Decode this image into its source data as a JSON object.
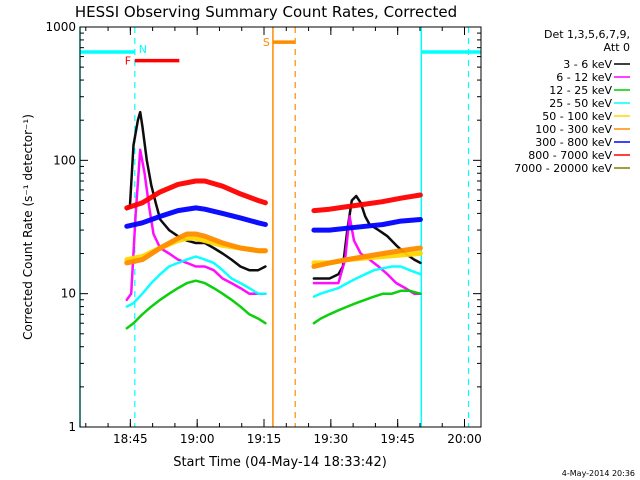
{
  "chart_data": {
    "type": "line",
    "title": "HESSI Observing Summary Count Rates, Corrected",
    "xlabel": "Start Time (04-May-14 18:33:42)",
    "ylabel": "Corrected Count Rate (s⁻¹ detector⁻¹)",
    "y_scale": "log",
    "ylim": [
      1,
      1000
    ],
    "y_ticks": [
      1,
      10,
      100,
      1000
    ],
    "y_tick_labels": [
      "1",
      "10",
      "100",
      "1000"
    ],
    "x_unit": "minutes since 18:33:42",
    "xlim": [
      0,
      90
    ],
    "x_ticks": [
      11.3,
      26.3,
      41.3,
      56.3,
      71.3,
      86.3
    ],
    "x_tick_labels": [
      "18:45",
      "19:00",
      "19:15",
      "19:30",
      "19:45",
      "20:00"
    ],
    "legend_header": [
      "Det 1,3,5,6,7,9,",
      "Att 0"
    ],
    "legend_position": "right",
    "footer_date": "4-May-2014 20:36",
    "series": [
      {
        "name": "3 - 6 keV",
        "color": "#000000",
        "points": [
          [
            10.5,
            43
          ],
          [
            11.2,
            45
          ],
          [
            12,
            130
          ],
          [
            13,
            200
          ],
          [
            13.5,
            230
          ],
          [
            14,
            180
          ],
          [
            15,
            100
          ],
          [
            16,
            65
          ],
          [
            17,
            48
          ],
          [
            18,
            36
          ],
          [
            20,
            30
          ],
          [
            22,
            27
          ],
          [
            24,
            25
          ],
          [
            26,
            24
          ],
          [
            28,
            24
          ],
          [
            30,
            22
          ],
          [
            32,
            20
          ],
          [
            34,
            18
          ],
          [
            36,
            16
          ],
          [
            38,
            15
          ],
          [
            40,
            15
          ],
          [
            41.6,
            16
          ],
          null,
          [
            52.5,
            13
          ],
          [
            54,
            13
          ],
          [
            56,
            13
          ],
          [
            58,
            14
          ],
          [
            59,
            16
          ],
          [
            60,
            30
          ],
          [
            61,
            50
          ],
          [
            62,
            54
          ],
          [
            63,
            48
          ],
          [
            64,
            38
          ],
          [
            65,
            33
          ],
          [
            67,
            30
          ],
          [
            69,
            27
          ],
          [
            71,
            23
          ],
          [
            73,
            20
          ],
          [
            75,
            18
          ],
          [
            76.4,
            17
          ]
        ]
      },
      {
        "name": "6 - 12 keV",
        "color": "#ff00ff",
        "points": [
          [
            10.5,
            9
          ],
          [
            11.5,
            10
          ],
          [
            12.5,
            40
          ],
          [
            13.5,
            120
          ],
          [
            14.5,
            80
          ],
          [
            15.5,
            45
          ],
          [
            16.5,
            28
          ],
          [
            18,
            22
          ],
          [
            20,
            20
          ],
          [
            22,
            18
          ],
          [
            24,
            17
          ],
          [
            26,
            16
          ],
          [
            28,
            16
          ],
          [
            30,
            15
          ],
          [
            32,
            13
          ],
          [
            34,
            12
          ],
          [
            36,
            11
          ],
          [
            38,
            10
          ],
          [
            40,
            10
          ],
          [
            41.6,
            10
          ],
          null,
          [
            52.5,
            12
          ],
          [
            54,
            12
          ],
          [
            56,
            12
          ],
          [
            58,
            12
          ],
          [
            59.5,
            18
          ],
          [
            60.5,
            38
          ],
          [
            61.5,
            25
          ],
          [
            63,
            20
          ],
          [
            65,
            18
          ],
          [
            67,
            16
          ],
          [
            69,
            14
          ],
          [
            71,
            12
          ],
          [
            73,
            11
          ],
          [
            75,
            10
          ],
          [
            76.4,
            10
          ]
        ]
      },
      {
        "name": "12 - 25 keV",
        "color": "#00cc00",
        "points": [
          [
            10.5,
            5.5
          ],
          [
            12,
            6
          ],
          [
            14,
            7
          ],
          [
            16,
            8
          ],
          [
            18,
            9
          ],
          [
            20,
            10
          ],
          [
            22,
            11
          ],
          [
            24,
            12
          ],
          [
            26,
            12.5
          ],
          [
            28,
            12
          ],
          [
            30,
            11
          ],
          [
            32,
            10
          ],
          [
            34,
            9
          ],
          [
            36,
            8
          ],
          [
            38,
            7
          ],
          [
            40,
            6.5
          ],
          [
            41.6,
            6
          ],
          null,
          [
            52.5,
            6
          ],
          [
            54,
            6.5
          ],
          [
            56,
            7
          ],
          [
            58,
            7.5
          ],
          [
            60,
            8
          ],
          [
            62,
            8.5
          ],
          [
            64,
            9
          ],
          [
            66,
            9.5
          ],
          [
            68,
            10
          ],
          [
            70,
            10
          ],
          [
            72,
            10.5
          ],
          [
            74,
            10.5
          ],
          [
            76.4,
            10
          ]
        ]
      },
      {
        "name": "25 - 50 keV",
        "color": "#00ffff",
        "points": [
          [
            10.5,
            8
          ],
          [
            12,
            8.5
          ],
          [
            14,
            10
          ],
          [
            16,
            12
          ],
          [
            18,
            14
          ],
          [
            20,
            16
          ],
          [
            22,
            17
          ],
          [
            24,
            18
          ],
          [
            26,
            19
          ],
          [
            28,
            18
          ],
          [
            30,
            17
          ],
          [
            32,
            15
          ],
          [
            34,
            13
          ],
          [
            36,
            12
          ],
          [
            38,
            11
          ],
          [
            40,
            10
          ],
          [
            41.6,
            10
          ],
          null,
          [
            52.5,
            9.5
          ],
          [
            54,
            10
          ],
          [
            56,
            10.5
          ],
          [
            58,
            11
          ],
          [
            60,
            12
          ],
          [
            62,
            13
          ],
          [
            64,
            14
          ],
          [
            66,
            15
          ],
          [
            68,
            15.5
          ],
          [
            70,
            16
          ],
          [
            72,
            16
          ],
          [
            74,
            15
          ],
          [
            76.4,
            14
          ]
        ]
      },
      {
        "name": "50 - 100 keV",
        "color": "#ffd700",
        "points": [
          [
            10.5,
            18
          ],
          [
            14,
            19
          ],
          [
            18,
            22
          ],
          [
            22,
            25
          ],
          [
            24,
            26
          ],
          [
            26,
            26
          ],
          [
            28,
            25
          ],
          [
            32,
            23
          ],
          [
            36,
            22
          ],
          [
            40,
            21
          ],
          [
            41.6,
            21
          ],
          null,
          [
            52.5,
            17
          ],
          [
            56,
            17
          ],
          [
            60,
            18
          ],
          [
            64,
            18.5
          ],
          [
            68,
            19
          ],
          [
            72,
            19.5
          ],
          [
            76.4,
            20
          ]
        ]
      },
      {
        "name": "100 - 300 keV",
        "color": "#ff8c00",
        "points": [
          [
            10.5,
            17
          ],
          [
            14,
            18
          ],
          [
            18,
            22
          ],
          [
            22,
            26
          ],
          [
            24,
            28
          ],
          [
            26,
            28
          ],
          [
            28,
            27
          ],
          [
            32,
            24
          ],
          [
            36,
            22
          ],
          [
            40,
            21
          ],
          [
            41.6,
            21
          ],
          null,
          [
            52.5,
            16
          ],
          [
            56,
            17
          ],
          [
            60,
            18
          ],
          [
            64,
            19
          ],
          [
            68,
            20
          ],
          [
            72,
            21
          ],
          [
            76.4,
            22
          ]
        ]
      },
      {
        "name": "300 - 800 keV",
        "color": "#0000ff",
        "points": [
          [
            10.5,
            32
          ],
          [
            14,
            34
          ],
          [
            18,
            38
          ],
          [
            22,
            42
          ],
          [
            26,
            44
          ],
          [
            28,
            43
          ],
          [
            32,
            40
          ],
          [
            36,
            37
          ],
          [
            40,
            34
          ],
          [
            41.6,
            33
          ],
          null,
          [
            52.5,
            30
          ],
          [
            56,
            30
          ],
          [
            60,
            31
          ],
          [
            64,
            32
          ],
          [
            68,
            33
          ],
          [
            72,
            35
          ],
          [
            76.4,
            36
          ]
        ]
      },
      {
        "name": "800 - 7000 keV",
        "color": "#ff0000",
        "points": [
          [
            10.5,
            44
          ],
          [
            14,
            48
          ],
          [
            18,
            58
          ],
          [
            22,
            66
          ],
          [
            26,
            70
          ],
          [
            28,
            70
          ],
          [
            32,
            64
          ],
          [
            36,
            56
          ],
          [
            40,
            50
          ],
          [
            41.6,
            48
          ],
          null,
          [
            52.5,
            42
          ],
          [
            56,
            43
          ],
          [
            60,
            45
          ],
          [
            64,
            47
          ],
          [
            68,
            49
          ],
          [
            72,
            52
          ],
          [
            76.4,
            55
          ]
        ]
      },
      {
        "name": "7000 - 20000 keV",
        "color": "#808000",
        "points": []
      }
    ],
    "annotations": [
      {
        "label": "N",
        "color": "#00ffff",
        "kind": "night",
        "bars": [
          [
            0,
            12.3
          ],
          [
            76.6,
            90
          ]
        ],
        "level": 650,
        "dashed_at": [
          12.3,
          87.2
        ],
        "solid_at": [
          0,
          76.6
        ]
      },
      {
        "label": "F",
        "color": "#ff0000",
        "kind": "flare",
        "bars": [
          [
            12.3,
            22.3
          ]
        ],
        "level": 560
      },
      {
        "label": "S",
        "color": "#ff8c00",
        "kind": "saa",
        "bars": [
          [
            43.3,
            48.3
          ]
        ],
        "level": 770,
        "solid_at": [
          43.3
        ],
        "dashed_at": [
          48.3
        ]
      }
    ]
  }
}
